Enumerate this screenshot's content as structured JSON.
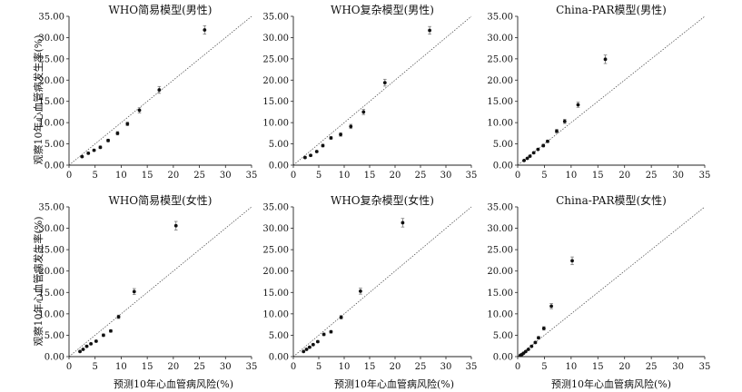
{
  "figure": {
    "ylabel": "观察10年心血管病发生率(%)",
    "xlabel": "预测10年心血管病风险(%)"
  },
  "chart_data": [
    {
      "type": "scatter",
      "title": "WHO简易模型(男性)",
      "xlim": [
        0,
        35
      ],
      "ylim": [
        0,
        35
      ],
      "xticks": [
        "0",
        "5",
        "10",
        "15",
        "20",
        "25",
        "30",
        "35"
      ],
      "yticks": [
        "0.00",
        "5.00",
        "10.00",
        "15.00",
        "20.00",
        "25.00",
        "30.00",
        "35.00"
      ],
      "reference_line": "y = x",
      "points": [
        {
          "x": 2.5,
          "y": 2.0,
          "err": 0.2
        },
        {
          "x": 3.7,
          "y": 2.8,
          "err": 0.2
        },
        {
          "x": 4.8,
          "y": 3.5,
          "err": 0.2
        },
        {
          "x": 6.0,
          "y": 4.2,
          "err": 0.3
        },
        {
          "x": 7.5,
          "y": 5.8,
          "err": 0.3
        },
        {
          "x": 9.3,
          "y": 7.5,
          "err": 0.4
        },
        {
          "x": 11.2,
          "y": 9.7,
          "err": 0.4
        },
        {
          "x": 13.5,
          "y": 12.9,
          "err": 0.6
        },
        {
          "x": 17.3,
          "y": 17.7,
          "err": 0.8
        },
        {
          "x": 26.0,
          "y": 31.8,
          "err": 1.0
        }
      ]
    },
    {
      "type": "scatter",
      "title": "WHO复杂模型(男性)",
      "xlim": [
        0,
        35
      ],
      "ylim": [
        0,
        35
      ],
      "xticks": [
        "0",
        "5",
        "10",
        "15",
        "20",
        "25",
        "30",
        "35"
      ],
      "yticks": [
        "0.00",
        "5.00",
        "10.00",
        "15.00",
        "20.00",
        "25.00",
        "30.00",
        "35.00"
      ],
      "reference_line": "y = x",
      "points": [
        {
          "x": 2.3,
          "y": 1.8,
          "err": 0.2
        },
        {
          "x": 3.4,
          "y": 2.3,
          "err": 0.2
        },
        {
          "x": 4.6,
          "y": 3.2,
          "err": 0.2
        },
        {
          "x": 5.8,
          "y": 4.6,
          "err": 0.3
        },
        {
          "x": 7.4,
          "y": 6.4,
          "err": 0.3
        },
        {
          "x": 9.3,
          "y": 7.2,
          "err": 0.4
        },
        {
          "x": 11.3,
          "y": 9.1,
          "err": 0.5
        },
        {
          "x": 13.8,
          "y": 12.5,
          "err": 0.6
        },
        {
          "x": 18.0,
          "y": 19.4,
          "err": 0.8
        },
        {
          "x": 26.8,
          "y": 31.7,
          "err": 0.9
        }
      ]
    },
    {
      "type": "scatter",
      "title": "China-PAR模型(男性)",
      "xlim": [
        0,
        35
      ],
      "ylim": [
        0,
        35
      ],
      "xticks": [
        "0",
        "5",
        "10",
        "15",
        "20",
        "25",
        "30",
        "35"
      ],
      "yticks": [
        "0.00",
        "5.00",
        "10.00",
        "15.00",
        "20.00",
        "25.00",
        "30.00",
        "35.00"
      ],
      "reference_line": "y = x",
      "points": [
        {
          "x": 1.2,
          "y": 1.1,
          "err": 0.1
        },
        {
          "x": 1.8,
          "y": 1.6,
          "err": 0.1
        },
        {
          "x": 2.3,
          "y": 2.1,
          "err": 0.2
        },
        {
          "x": 3.0,
          "y": 2.9,
          "err": 0.2
        },
        {
          "x": 3.8,
          "y": 3.7,
          "err": 0.2
        },
        {
          "x": 4.8,
          "y": 4.6,
          "err": 0.3
        },
        {
          "x": 5.6,
          "y": 5.6,
          "err": 0.3
        },
        {
          "x": 7.3,
          "y": 8.0,
          "err": 0.4
        },
        {
          "x": 8.8,
          "y": 10.3,
          "err": 0.5
        },
        {
          "x": 11.3,
          "y": 14.2,
          "err": 0.6
        },
        {
          "x": 16.4,
          "y": 24.9,
          "err": 1.0
        }
      ]
    },
    {
      "type": "scatter",
      "title": "WHO简易模型(女性)",
      "xlim": [
        0,
        35
      ],
      "ylim": [
        0,
        35
      ],
      "xticks": [
        "0",
        "5",
        "10",
        "15",
        "20",
        "25",
        "30",
        "35"
      ],
      "yticks": [
        "0.00",
        "5.00",
        "10.00",
        "15.00",
        "20.00",
        "25.00",
        "30.00",
        "35.00"
      ],
      "reference_line": "y = x",
      "points": [
        {
          "x": 2.1,
          "y": 1.2,
          "err": 0.1
        },
        {
          "x": 2.7,
          "y": 1.7,
          "err": 0.1
        },
        {
          "x": 3.4,
          "y": 2.4,
          "err": 0.2
        },
        {
          "x": 4.2,
          "y": 3.0,
          "err": 0.2
        },
        {
          "x": 5.2,
          "y": 3.6,
          "err": 0.2
        },
        {
          "x": 6.6,
          "y": 5.0,
          "err": 0.3
        },
        {
          "x": 8.0,
          "y": 6.0,
          "err": 0.3
        },
        {
          "x": 9.5,
          "y": 9.3,
          "err": 0.4
        },
        {
          "x": 12.5,
          "y": 15.2,
          "err": 0.7
        },
        {
          "x": 20.5,
          "y": 30.6,
          "err": 1.0
        }
      ]
    },
    {
      "type": "scatter",
      "title": "WHO复杂模型(女性)",
      "xlim": [
        0,
        35
      ],
      "ylim": [
        0,
        35
      ],
      "xticks": [
        "0",
        "5",
        "10",
        "15",
        "20",
        "25",
        "30",
        "35"
      ],
      "yticks": [
        "0.00",
        "5.00",
        "10.00",
        "15.00",
        "20.00",
        "25.00",
        "30.00",
        "35.00"
      ],
      "reference_line": "y = x",
      "points": [
        {
          "x": 2.0,
          "y": 1.2,
          "err": 0.1
        },
        {
          "x": 2.6,
          "y": 1.7,
          "err": 0.1
        },
        {
          "x": 3.2,
          "y": 2.2,
          "err": 0.2
        },
        {
          "x": 3.9,
          "y": 2.8,
          "err": 0.2
        },
        {
          "x": 4.8,
          "y": 3.5,
          "err": 0.2
        },
        {
          "x": 6.0,
          "y": 5.2,
          "err": 0.3
        },
        {
          "x": 7.4,
          "y": 5.8,
          "err": 0.3
        },
        {
          "x": 9.4,
          "y": 9.2,
          "err": 0.4
        },
        {
          "x": 13.2,
          "y": 15.3,
          "err": 0.7
        },
        {
          "x": 21.5,
          "y": 31.3,
          "err": 1.0
        }
      ]
    },
    {
      "type": "scatter",
      "title": "China-PAR模型(女性)",
      "xlim": [
        0,
        35
      ],
      "ylim": [
        0,
        35
      ],
      "xticks": [
        "0",
        "5",
        "10",
        "15",
        "20",
        "25",
        "30",
        "35"
      ],
      "yticks": [
        "0.00",
        "5.00",
        "10.00",
        "15.00",
        "20.00",
        "25.00",
        "30.00",
        "35.00"
      ],
      "reference_line": "y = x",
      "points": [
        {
          "x": 0.5,
          "y": 0.3,
          "err": 0.05
        },
        {
          "x": 0.8,
          "y": 0.5,
          "err": 0.05
        },
        {
          "x": 1.1,
          "y": 0.8,
          "err": 0.1
        },
        {
          "x": 1.5,
          "y": 1.2,
          "err": 0.1
        },
        {
          "x": 2.0,
          "y": 1.7,
          "err": 0.1
        },
        {
          "x": 2.6,
          "y": 2.4,
          "err": 0.2
        },
        {
          "x": 3.3,
          "y": 3.3,
          "err": 0.2
        },
        {
          "x": 3.9,
          "y": 4.4,
          "err": 0.3
        },
        {
          "x": 4.9,
          "y": 6.6,
          "err": 0.4
        },
        {
          "x": 6.3,
          "y": 11.8,
          "err": 0.6
        },
        {
          "x": 10.2,
          "y": 22.4,
          "err": 0.9
        }
      ]
    }
  ]
}
